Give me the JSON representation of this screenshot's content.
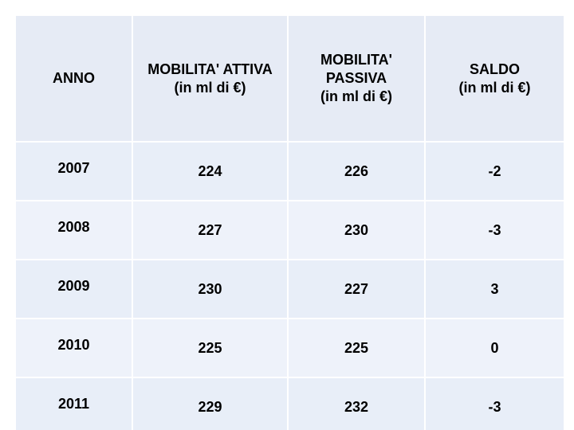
{
  "table": {
    "headers": [
      {
        "lines": [
          "ANNO"
        ]
      },
      {
        "lines": [
          "MOBILITA' ATTIVA",
          "(in ml di €)"
        ]
      },
      {
        "lines": [
          "MOBILITA'",
          "PASSIVA",
          "(in ml di €)"
        ]
      },
      {
        "lines": [
          "SALDO",
          "(in ml di €)"
        ]
      }
    ],
    "rows": [
      [
        "2007",
        "224",
        "226",
        "-2"
      ],
      [
        "2008",
        "227",
        "230",
        "-3"
      ],
      [
        "2009",
        "230",
        "227",
        "3"
      ],
      [
        "2010",
        "225",
        "225",
        "0"
      ],
      [
        "2011",
        "229",
        "232",
        "-3"
      ]
    ]
  },
  "colors": {
    "cell_background": "#e8eef8",
    "grid_lines": "#ffffff",
    "text": "#000000"
  }
}
